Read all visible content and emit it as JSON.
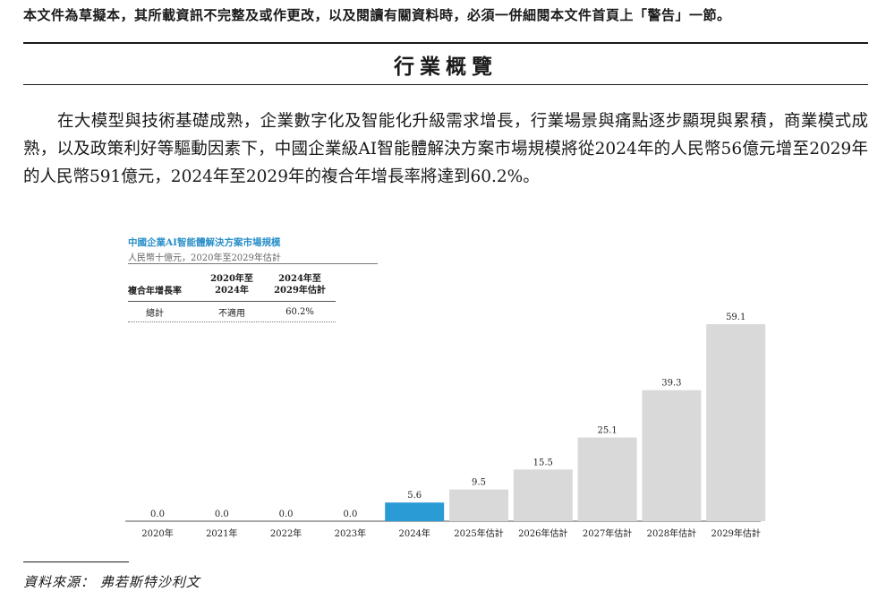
{
  "document": {
    "warning": "本文件為草擬本，其所載資訊不完整及或作更改，以及閱讀有關資料時，必須一併細閱本文件首頁上「警告」一節。",
    "section_title": "行業概覽",
    "paragraph": "在大模型與技術基礎成熟，企業數字化及智能化升級需求增長，行業場景與痛點逐步顯現與累積，商業模式成熟，以及政策利好等驅動因素下，中國企業級AI智能體解決方案市場規模將從2024年的人民幣56億元增至2029年的人民幣591億元，2024年至2029年的複合年增長率將達到60.2%。",
    "source": "資料來源：  弗若斯特沙利文"
  },
  "cagr_table": {
    "header": {
      "label": "複合年增長率",
      "col1": "2020年至\n2024年",
      "col2": "2024年至\n2029年估計"
    },
    "row": {
      "label": "總計",
      "col1": "不適用",
      "col2": "60.2%"
    }
  },
  "chart_data": {
    "type": "bar",
    "title": "中國企業AI智能體解決方案市場規模",
    "subtitle": "人民幣十億元，2020年至2029年估計",
    "categories": [
      "2020年",
      "2021年",
      "2022年",
      "2023年",
      "2024年",
      "2025年估計",
      "2026年估計",
      "2027年估計",
      "2028年估計",
      "2029年估計"
    ],
    "values": [
      0.0,
      0.0,
      0.0,
      0.0,
      5.6,
      9.5,
      15.5,
      25.1,
      39.3,
      59.1
    ],
    "value_labels": [
      "0.0",
      "0.0",
      "0.0",
      "0.0",
      "5.6",
      "9.5",
      "15.5",
      "25.1",
      "39.3",
      "59.1"
    ],
    "highlight_index": 4,
    "colors": {
      "highlight": "#2b9bd6",
      "bar": "#d9d9d9"
    },
    "ylim": [
      0,
      60
    ],
    "grid": false,
    "legend": "none"
  }
}
